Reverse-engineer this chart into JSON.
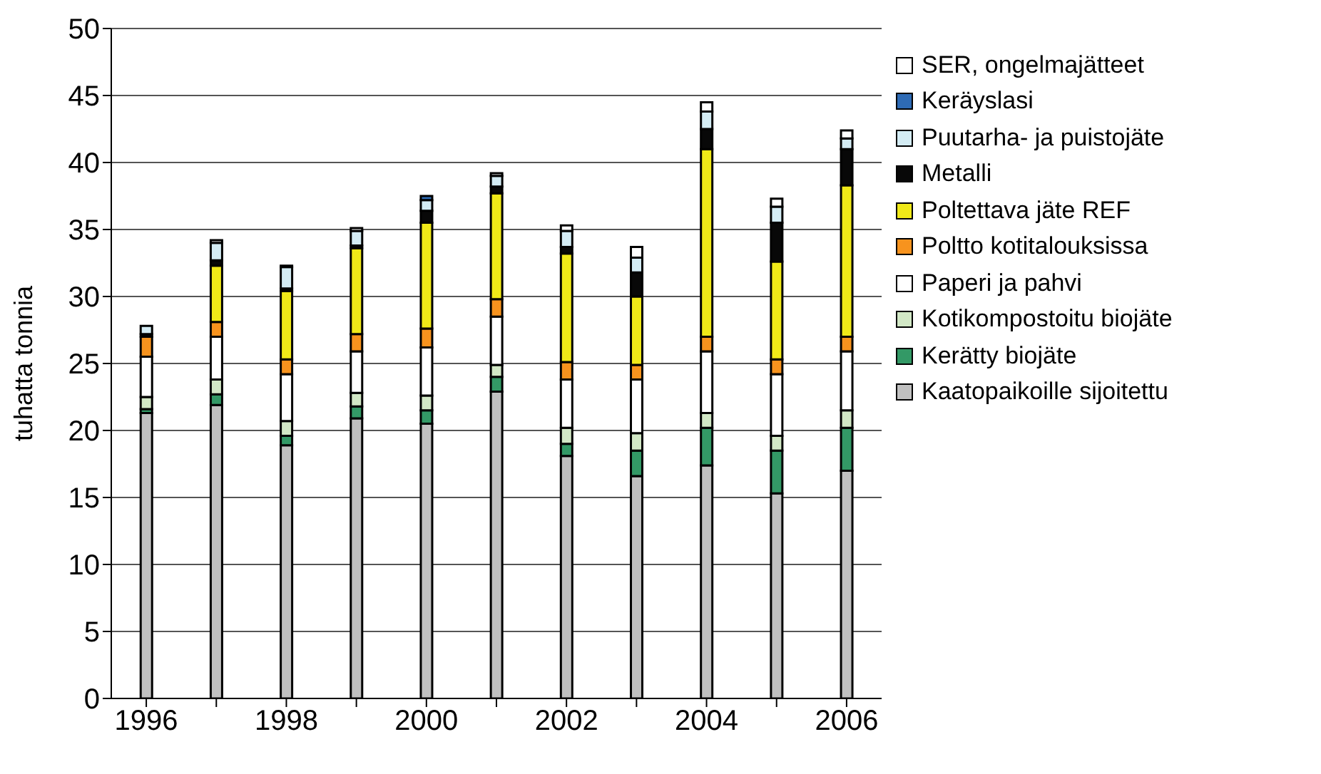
{
  "chart_data": {
    "type": "bar",
    "stacked": true,
    "ylabel": "tuhatta tonnia",
    "categories": [
      "1996",
      null,
      "1998",
      null,
      "2000",
      null,
      "2002",
      null,
      "2004",
      null,
      "2006"
    ],
    "ylim": [
      0,
      50
    ],
    "yticks": [
      0,
      5,
      10,
      15,
      20,
      25,
      30,
      35,
      40,
      45,
      50
    ],
    "grid": "y",
    "legend": "right",
    "series": [
      {
        "name": "Kaatopaikoille sijoitettu",
        "color": "#c0c0c0",
        "values": [
          21.3,
          21.9,
          18.9,
          20.9,
          20.5,
          22.9,
          18.1,
          16.6,
          17.4,
          15.3,
          17.0
        ]
      },
      {
        "name": "Kerätty biojäte",
        "color": "#339966",
        "values": [
          0.3,
          0.8,
          0.7,
          0.9,
          1.0,
          1.1,
          0.9,
          1.9,
          2.8,
          3.2,
          3.2
        ]
      },
      {
        "name": "Kotikompostoitu biojäte",
        "color": "#d2e8c6",
        "values": [
          0.9,
          1.1,
          1.1,
          1.0,
          1.1,
          0.9,
          1.2,
          1.3,
          1.1,
          1.1,
          1.3
        ]
      },
      {
        "name": "Paperi ja pahvi",
        "color": "#ffffff",
        "values": [
          3.0,
          3.2,
          3.5,
          3.1,
          3.6,
          3.6,
          3.6,
          4.0,
          4.6,
          4.6,
          4.4
        ]
      },
      {
        "name": "Poltto kotitalouksissa",
        "color": "#f7931e",
        "values": [
          1.5,
          1.1,
          1.1,
          1.3,
          1.4,
          1.3,
          1.3,
          1.1,
          1.1,
          1.1,
          1.1
        ]
      },
      {
        "name": "Poltettava jäte REF",
        "color": "#f0e918",
        "values": [
          0,
          4.2,
          5.1,
          6.4,
          7.9,
          7.9,
          8.1,
          5.1,
          14.0,
          7.3,
          11.3
        ]
      },
      {
        "name": "Metalli",
        "color": "#080808",
        "values": [
          0.2,
          0.4,
          0.2,
          0.2,
          0.9,
          0.5,
          0.5,
          1.8,
          1.5,
          2.9,
          2.7
        ]
      },
      {
        "name": "Puutarha- ja puistojäte",
        "color": "#d4ecf4",
        "values": [
          0.6,
          1.3,
          1.6,
          1.1,
          0.8,
          0.8,
          1.2,
          1.1,
          1.3,
          1.2,
          0.8
        ]
      },
      {
        "name": "Keräyslasi",
        "color": "#2e6bb5",
        "values": [
          0,
          0,
          0,
          0,
          0.3,
          0,
          0,
          0,
          0,
          0,
          0
        ]
      },
      {
        "name": "SER, ongelmajätteet",
        "color": "#ffffff",
        "values": [
          0,
          0.2,
          0.1,
          0.2,
          0,
          0.2,
          0.4,
          0.8,
          0.7,
          0.6,
          0.6
        ]
      }
    ]
  }
}
